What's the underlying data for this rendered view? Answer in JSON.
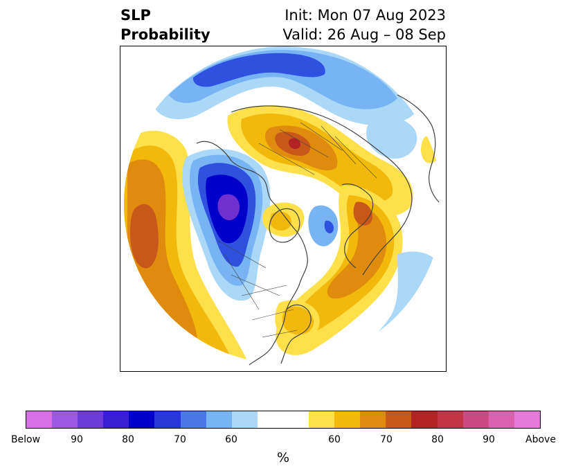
{
  "title": {
    "left_line1": "SLP",
    "left_line2": "Probability",
    "right_line1": "Init: Mon 07 Aug 2023",
    "right_line2": "Valid: 26 Aug – 08 Sep"
  },
  "colorbar": {
    "unit": "%",
    "tick_labels": [
      "Below",
      "90",
      "80",
      "70",
      "60",
      "60",
      "70",
      "80",
      "90",
      "Above"
    ],
    "colors": [
      "#d86ee8",
      "#9b58e0",
      "#6d3bd8",
      "#3a1ed4",
      "#0000c8",
      "#2838d8",
      "#4a78e8",
      "#78b4f4",
      "#acd8f8",
      "#ffffff",
      "#ffffff",
      "#fde04a",
      "#f2b80c",
      "#df8c0e",
      "#c8581a",
      "#b22424",
      "#c43448",
      "#cc4a84",
      "#dc60b0",
      "#e67ad8"
    ]
  },
  "map": {
    "projection": "north-polar-stereographic",
    "colors": {
      "below_strong": "#7030d0",
      "below_80": "#0000c8",
      "below_70": "#3050e0",
      "below_60": "#78b4f4",
      "below_50": "#acd8f8",
      "above_50": "#fde04a",
      "above_60": "#f2b80c",
      "above_70": "#df8c0e",
      "above_80": "#c8581a",
      "above_strong": "#b22424",
      "coast": "#404040"
    }
  }
}
